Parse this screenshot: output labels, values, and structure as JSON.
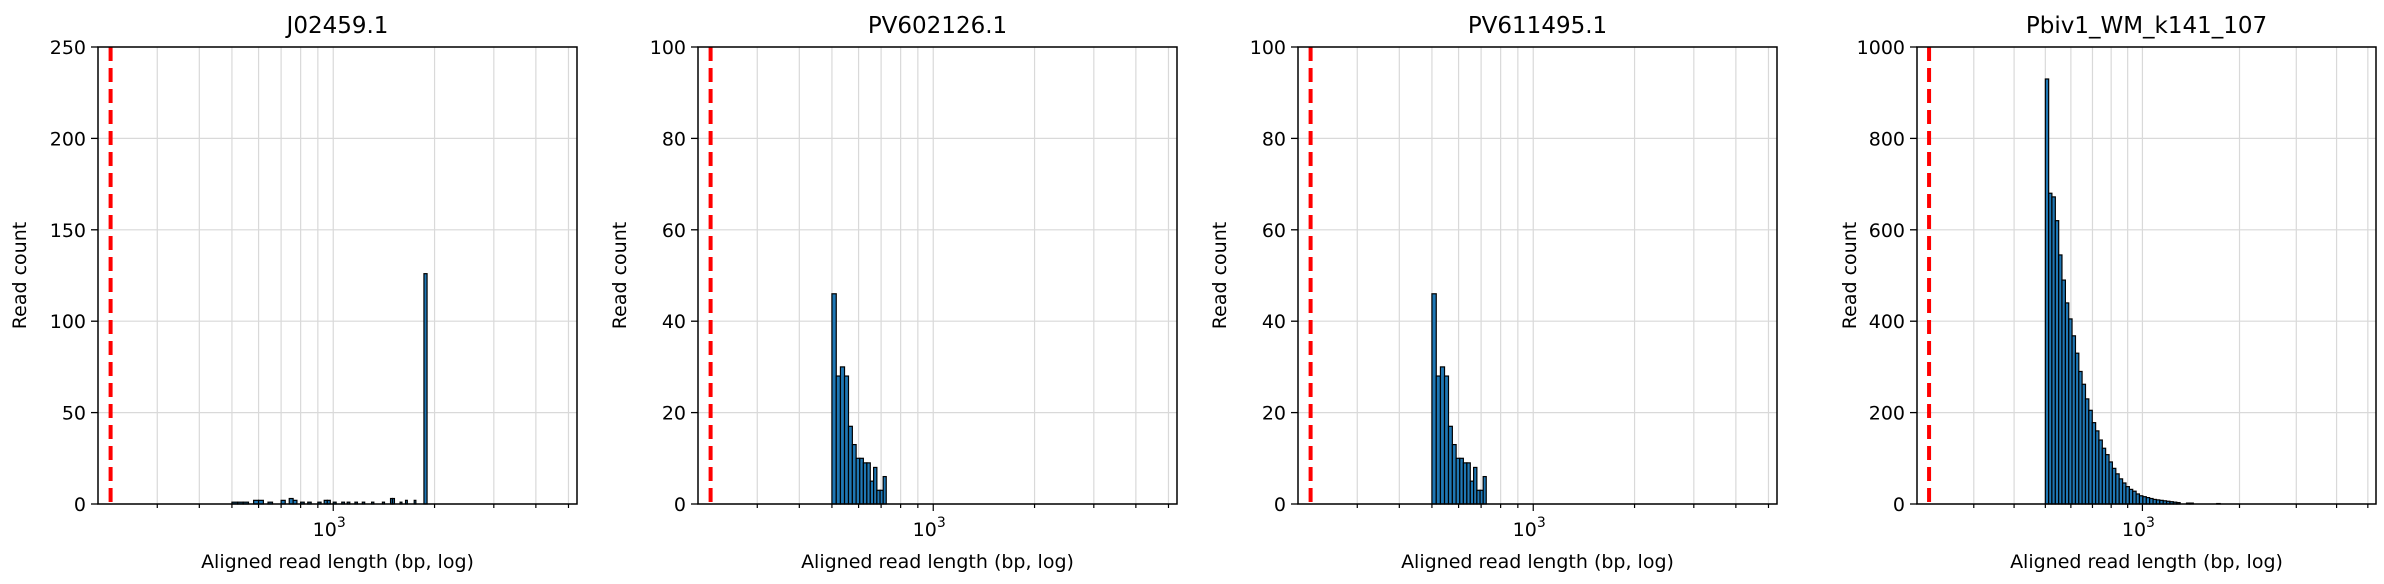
{
  "figure": {
    "colors": {
      "bar_fill": "#1f77b4",
      "bar_edge": "#000000",
      "threshold_line": "#ff0000",
      "grid": "#d9d9d9"
    }
  },
  "chart_data": [
    {
      "type": "bar",
      "title": "J02459.1",
      "xlabel": "Aligned read length (bp, log)",
      "ylabel": "Read count",
      "xscale": "log",
      "xlim": [
        200,
        5300
      ],
      "ylim": [
        0,
        250
      ],
      "yticks": [
        "0",
        "50",
        "100",
        "150",
        "200",
        "250"
      ],
      "xtick_label": {
        "base": "10",
        "exp": "3"
      },
      "grid": true,
      "threshold_x": 218,
      "bins": [
        {
          "x0": 500,
          "x1": 520,
          "count": 1
        },
        {
          "x0": 520,
          "x1": 540,
          "count": 1
        },
        {
          "x0": 540,
          "x1": 560,
          "count": 1
        },
        {
          "x0": 580,
          "x1": 600,
          "count": 2
        },
        {
          "x0": 600,
          "x1": 620,
          "count": 2
        },
        {
          "x0": 640,
          "x1": 660,
          "count": 1
        },
        {
          "x0": 700,
          "x1": 720,
          "count": 2
        },
        {
          "x0": 740,
          "x1": 760,
          "count": 3
        },
        {
          "x0": 760,
          "x1": 780,
          "count": 2
        },
        {
          "x0": 800,
          "x1": 820,
          "count": 1
        },
        {
          "x0": 840,
          "x1": 860,
          "count": 1
        },
        {
          "x0": 900,
          "x1": 920,
          "count": 1
        },
        {
          "x0": 940,
          "x1": 960,
          "count": 2
        },
        {
          "x0": 960,
          "x1": 980,
          "count": 2
        },
        {
          "x0": 1000,
          "x1": 1020,
          "count": 1
        },
        {
          "x0": 1060,
          "x1": 1080,
          "count": 1
        },
        {
          "x0": 1100,
          "x1": 1120,
          "count": 1
        },
        {
          "x0": 1160,
          "x1": 1180,
          "count": 1
        },
        {
          "x0": 1220,
          "x1": 1240,
          "count": 1
        },
        {
          "x0": 1300,
          "x1": 1320,
          "count": 1
        },
        {
          "x0": 1400,
          "x1": 1420,
          "count": 1
        },
        {
          "x0": 1480,
          "x1": 1500,
          "count": 3
        },
        {
          "x0": 1500,
          "x1": 1520,
          "count": 3
        },
        {
          "x0": 1580,
          "x1": 1600,
          "count": 1
        },
        {
          "x0": 1640,
          "x1": 1660,
          "count": 2
        },
        {
          "x0": 1740,
          "x1": 1760,
          "count": 2
        },
        {
          "x0": 1860,
          "x1": 1900,
          "count": 126
        }
      ]
    },
    {
      "type": "bar",
      "title": "PV602126.1",
      "xlabel": "Aligned read length (bp, log)",
      "ylabel": "Read count",
      "xscale": "log",
      "xlim": [
        200,
        5300
      ],
      "ylim": [
        0,
        100
      ],
      "yticks": [
        "0",
        "20",
        "40",
        "60",
        "80",
        "100"
      ],
      "xtick_label": {
        "base": "10",
        "exp": "3"
      },
      "grid": true,
      "threshold_x": 218,
      "bins": [
        {
          "x0": 500,
          "x1": 515,
          "count": 46
        },
        {
          "x0": 515,
          "x1": 530,
          "count": 28
        },
        {
          "x0": 530,
          "x1": 545,
          "count": 30
        },
        {
          "x0": 545,
          "x1": 560,
          "count": 28
        },
        {
          "x0": 560,
          "x1": 575,
          "count": 17
        },
        {
          "x0": 575,
          "x1": 590,
          "count": 13
        },
        {
          "x0": 590,
          "x1": 605,
          "count": 10
        },
        {
          "x0": 605,
          "x1": 620,
          "count": 10
        },
        {
          "x0": 620,
          "x1": 635,
          "count": 9
        },
        {
          "x0": 635,
          "x1": 650,
          "count": 9
        },
        {
          "x0": 650,
          "x1": 665,
          "count": 5
        },
        {
          "x0": 665,
          "x1": 680,
          "count": 8
        },
        {
          "x0": 680,
          "x1": 695,
          "count": 3
        },
        {
          "x0": 695,
          "x1": 710,
          "count": 3
        },
        {
          "x0": 710,
          "x1": 725,
          "count": 6
        }
      ]
    },
    {
      "type": "bar",
      "title": "PV611495.1",
      "xlabel": "Aligned read length (bp, log)",
      "ylabel": "Read count",
      "xscale": "log",
      "xlim": [
        200,
        5300
      ],
      "ylim": [
        0,
        100
      ],
      "yticks": [
        "0",
        "20",
        "40",
        "60",
        "80",
        "100"
      ],
      "xtick_label": {
        "base": "10",
        "exp": "3"
      },
      "grid": true,
      "threshold_x": 218,
      "bins": [
        {
          "x0": 500,
          "x1": 515,
          "count": 46
        },
        {
          "x0": 515,
          "x1": 530,
          "count": 28
        },
        {
          "x0": 530,
          "x1": 545,
          "count": 30
        },
        {
          "x0": 545,
          "x1": 560,
          "count": 28
        },
        {
          "x0": 560,
          "x1": 575,
          "count": 17
        },
        {
          "x0": 575,
          "x1": 590,
          "count": 13
        },
        {
          "x0": 590,
          "x1": 605,
          "count": 10
        },
        {
          "x0": 605,
          "x1": 620,
          "count": 10
        },
        {
          "x0": 620,
          "x1": 635,
          "count": 9
        },
        {
          "x0": 635,
          "x1": 650,
          "count": 9
        },
        {
          "x0": 650,
          "x1": 665,
          "count": 5
        },
        {
          "x0": 665,
          "x1": 680,
          "count": 8
        },
        {
          "x0": 680,
          "x1": 695,
          "count": 3
        },
        {
          "x0": 695,
          "x1": 710,
          "count": 3
        },
        {
          "x0": 710,
          "x1": 725,
          "count": 6
        }
      ]
    },
    {
      "type": "bar",
      "title": "Pbiv1_WM_k141_107",
      "xlabel": "Aligned read length (bp, log)",
      "ylabel": "Read count",
      "xscale": "log",
      "xlim": [
        200,
        5300
      ],
      "ylim": [
        0,
        1000
      ],
      "yticks": [
        "0",
        "200",
        "400",
        "600",
        "800",
        "1000"
      ],
      "xtick_label": {
        "base": "10",
        "exp": "3"
      },
      "grid": true,
      "threshold_x": 218,
      "bins": [
        {
          "x0": 500,
          "x1": 512,
          "count": 930
        },
        {
          "x0": 512,
          "x1": 524,
          "count": 680
        },
        {
          "x0": 524,
          "x1": 537,
          "count": 672
        },
        {
          "x0": 537,
          "x1": 550,
          "count": 620
        },
        {
          "x0": 550,
          "x1": 563,
          "count": 545
        },
        {
          "x0": 563,
          "x1": 577,
          "count": 490
        },
        {
          "x0": 577,
          "x1": 591,
          "count": 440
        },
        {
          "x0": 591,
          "x1": 605,
          "count": 405
        },
        {
          "x0": 605,
          "x1": 620,
          "count": 368
        },
        {
          "x0": 620,
          "x1": 635,
          "count": 330
        },
        {
          "x0": 635,
          "x1": 650,
          "count": 290
        },
        {
          "x0": 650,
          "x1": 666,
          "count": 262
        },
        {
          "x0": 666,
          "x1": 682,
          "count": 230
        },
        {
          "x0": 682,
          "x1": 699,
          "count": 205
        },
        {
          "x0": 699,
          "x1": 716,
          "count": 178
        },
        {
          "x0": 716,
          "x1": 733,
          "count": 160
        },
        {
          "x0": 733,
          "x1": 751,
          "count": 140
        },
        {
          "x0": 751,
          "x1": 769,
          "count": 122
        },
        {
          "x0": 769,
          "x1": 788,
          "count": 108
        },
        {
          "x0": 788,
          "x1": 807,
          "count": 92
        },
        {
          "x0": 807,
          "x1": 827,
          "count": 78
        },
        {
          "x0": 827,
          "x1": 847,
          "count": 66
        },
        {
          "x0": 847,
          "x1": 868,
          "count": 55
        },
        {
          "x0": 868,
          "x1": 889,
          "count": 46
        },
        {
          "x0": 889,
          "x1": 911,
          "count": 38
        },
        {
          "x0": 911,
          "x1": 933,
          "count": 32
        },
        {
          "x0": 933,
          "x1": 956,
          "count": 28
        },
        {
          "x0": 956,
          "x1": 979,
          "count": 22
        },
        {
          "x0": 979,
          "x1": 1003,
          "count": 18
        },
        {
          "x0": 1003,
          "x1": 1028,
          "count": 16
        },
        {
          "x0": 1028,
          "x1": 1053,
          "count": 14
        },
        {
          "x0": 1053,
          "x1": 1079,
          "count": 12
        },
        {
          "x0": 1079,
          "x1": 1105,
          "count": 10
        },
        {
          "x0": 1105,
          "x1": 1132,
          "count": 9
        },
        {
          "x0": 1132,
          "x1": 1160,
          "count": 8
        },
        {
          "x0": 1160,
          "x1": 1188,
          "count": 7
        },
        {
          "x0": 1188,
          "x1": 1217,
          "count": 6
        },
        {
          "x0": 1217,
          "x1": 1247,
          "count": 5
        },
        {
          "x0": 1247,
          "x1": 1278,
          "count": 4
        },
        {
          "x0": 1278,
          "x1": 1309,
          "count": 3
        },
        {
          "x0": 1370,
          "x1": 1404,
          "count": 2
        },
        {
          "x0": 1404,
          "x1": 1438,
          "count": 2
        },
        {
          "x0": 1700,
          "x1": 1742,
          "count": 1
        }
      ]
    }
  ]
}
